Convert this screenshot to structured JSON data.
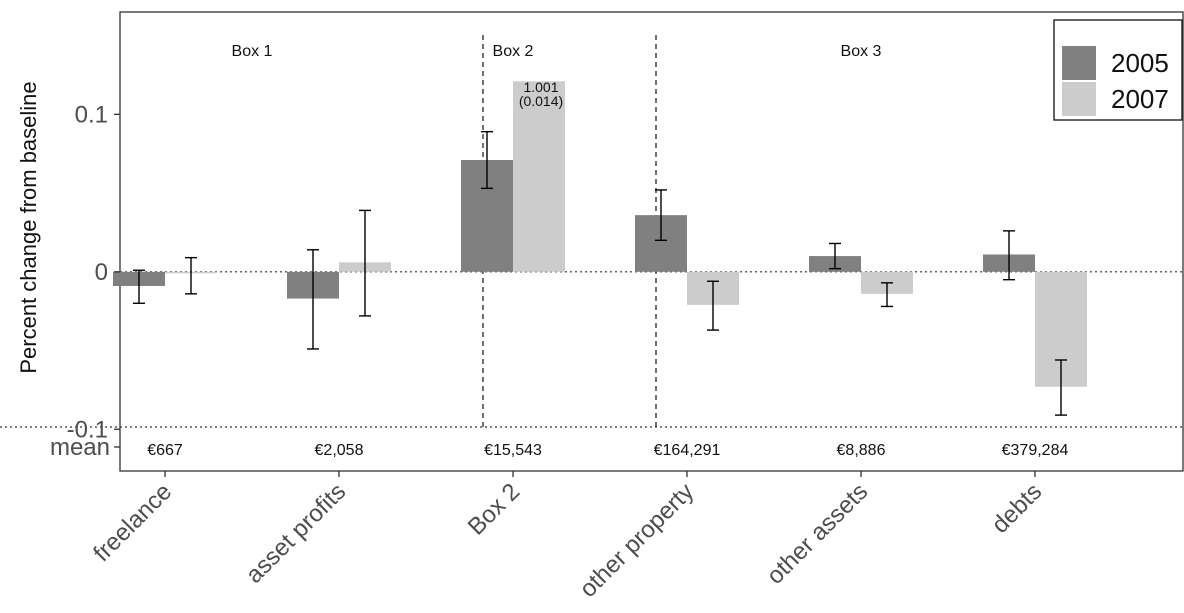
{
  "chart_data": {
    "type": "bar",
    "ylabel": "Percent change from baseline",
    "xlabel": "",
    "ylim": [
      -0.1265,
      0.165
    ],
    "yticks": [
      {
        "value": 0.1,
        "label": "0.1"
      },
      {
        "value": 0,
        "label": "0"
      },
      {
        "value": -0.1,
        "label": "-0.1"
      }
    ],
    "categories": [
      "freelance",
      "asset profits",
      "Box 2",
      "other property",
      "other assets",
      "debts"
    ],
    "series": [
      {
        "name": "2005",
        "color": "#808080",
        "values": [
          -0.009,
          -0.017,
          0.071,
          0.036,
          0.01,
          0.011
        ],
        "ci_low": [
          -0.02,
          -0.049,
          0.053,
          0.02,
          0.002,
          -0.005
        ],
        "ci_high": [
          0.001,
          0.014,
          0.089,
          0.052,
          0.018,
          0.026
        ]
      },
      {
        "name": "2007",
        "color": "#cccccc",
        "values": [
          -0.001,
          0.006,
          0.121,
          -0.021,
          -0.014,
          -0.073
        ],
        "ci_low": [
          -0.014,
          -0.028,
          null,
          -0.037,
          -0.022,
          -0.091
        ],
        "ci_high": [
          0.009,
          0.039,
          null,
          -0.006,
          -0.007,
          -0.056
        ]
      }
    ],
    "group_labels": [
      {
        "label": "Box 1",
        "categories": [
          "freelance",
          "asset profits"
        ]
      },
      {
        "label": "Box 2",
        "categories": [
          "Box 2"
        ]
      },
      {
        "label": "Box 3",
        "categories": [
          "other property",
          "other assets",
          "debts"
        ]
      }
    ],
    "mean_label": "mean",
    "means": [
      "€667",
      "€2,058",
      "€15,543",
      "€164,291",
      "€8,886",
      "€379,284"
    ],
    "annotation": {
      "category": "Box 2",
      "series": "2007",
      "line1": "1.001",
      "line2": "(0.014)"
    },
    "legend": {
      "position": "top-right"
    },
    "grid": false
  }
}
